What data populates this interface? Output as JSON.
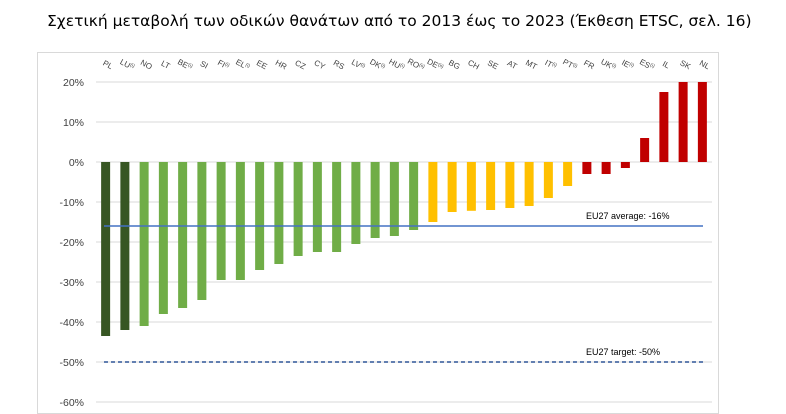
{
  "title": "Σχετική μεταβολή των οδικών θανάτων από το 2013 έως το 2023 (Έκθεση ETSC, σελ. 16)",
  "chart_data": {
    "type": "bar",
    "categories": [
      "PL",
      "LU",
      "NO",
      "LT",
      "BE",
      "SI",
      "FI",
      "EL",
      "EE",
      "HR",
      "CZ",
      "CY",
      "RS",
      "LV",
      "DK",
      "HU",
      "RO",
      "DE",
      "BG",
      "CH",
      "SE",
      "AT",
      "MT",
      "IT",
      "PT",
      "FR",
      "UK",
      "IE",
      "ES",
      "IL",
      "SK",
      "NL"
    ],
    "superscripts": [
      "",
      "(i)",
      "",
      "",
      "(i)",
      "",
      "(i)",
      "(i)",
      "",
      "",
      "",
      "",
      "",
      "(i)",
      "(i)",
      "(i)",
      "(ii)",
      "(ii)",
      "",
      "",
      "",
      "",
      "",
      "(i)",
      "(i)",
      "",
      "(i)",
      "(i)",
      "(i)",
      "",
      "",
      ""
    ],
    "values": [
      -43.5,
      -42,
      -41,
      -38,
      -36.5,
      -34.5,
      -29.5,
      -29.5,
      -27,
      -25.5,
      -23.5,
      -22.5,
      -22.5,
      -20.5,
      -19,
      -18.5,
      -17,
      -15,
      -12.5,
      -12.2,
      -12,
      -11.5,
      -11,
      -9,
      -6,
      -3,
      -3,
      -1.5,
      6,
      17.5,
      20,
      20
    ],
    "bar_colors": [
      "#375623",
      "#375623",
      "#70ad47",
      "#70ad47",
      "#70ad47",
      "#70ad47",
      "#70ad47",
      "#70ad47",
      "#70ad47",
      "#70ad47",
      "#70ad47",
      "#70ad47",
      "#70ad47",
      "#70ad47",
      "#70ad47",
      "#70ad47",
      "#70ad47",
      "#ffc000",
      "#ffc000",
      "#ffc000",
      "#ffc000",
      "#ffc000",
      "#ffc000",
      "#ffc000",
      "#ffc000",
      "#c00000",
      "#c00000",
      "#c00000",
      "#c00000",
      "#c00000",
      "#c00000",
      "#c00000"
    ],
    "ylim": [
      -60,
      20
    ],
    "yticks": [
      20,
      10,
      0,
      -10,
      -20,
      -30,
      -40,
      -50,
      -60
    ],
    "ytick_labels": [
      "20%",
      "10%",
      "0%",
      "-10%",
      "-20%",
      "-30%",
      "-40%",
      "-50%",
      "-60%"
    ],
    "reference_lines": [
      {
        "value": -16,
        "label": "EU27 average: -16%",
        "style": "solid",
        "color": "#4472c4"
      },
      {
        "value": -50,
        "label": "EU27 target: -50%",
        "style": "dashed",
        "color": "#2f5597"
      }
    ],
    "grid": true,
    "grid_color": "#d9d9d9"
  }
}
